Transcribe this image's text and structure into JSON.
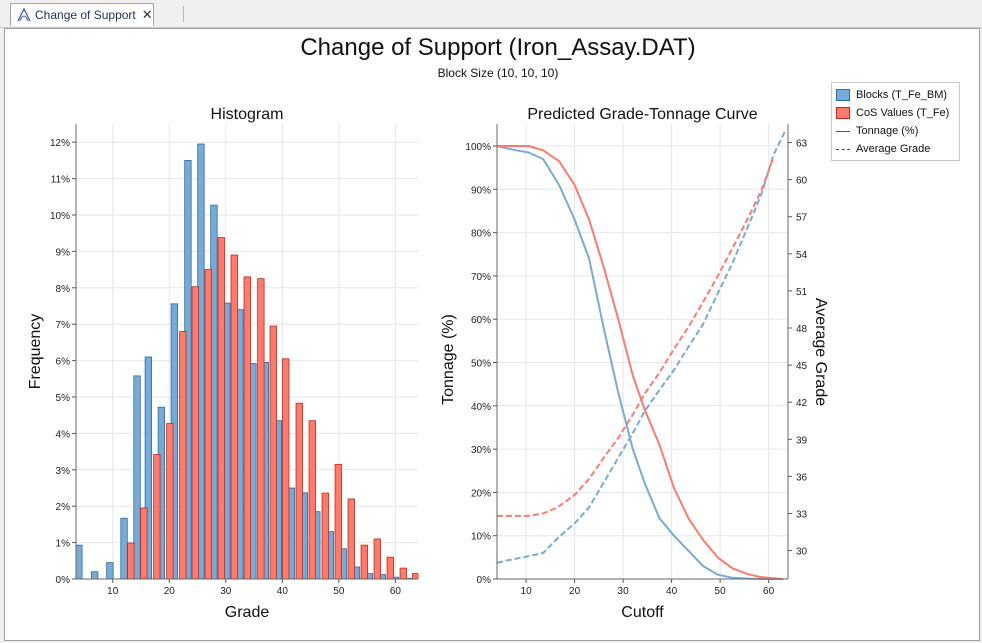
{
  "tab": {
    "label": "Change of Support",
    "close": "✕",
    "icon": "chart-icon"
  },
  "title": "Change of Support (Iron_Assay.DAT)",
  "subtitle": "Block Size (10, 10, 10)",
  "colors": {
    "blocks": "#78aad3",
    "blocks_edge": "#2b6ba3",
    "cos": "#f97c6f",
    "cos_edge": "#c8261a",
    "grid": "#e6e6e6"
  },
  "legend": {
    "blocks": "Blocks (T_Fe_BM)",
    "cos": "CoS Values (T_Fe)",
    "tonnage": "Tonnage (%)",
    "avg": "Average Grade"
  },
  "chart_data": [
    {
      "type": "bar",
      "title": "Histogram",
      "xlabel": "Grade",
      "ylabel": "Frequency",
      "xlim": [
        3.5,
        64
      ],
      "ylim": [
        0,
        12.5
      ],
      "xticks": [
        "10",
        "20",
        "30",
        "40",
        "50",
        "60"
      ],
      "yticks": [
        "0%",
        "1%",
        "2%",
        "3%",
        "4%",
        "5%",
        "6%",
        "7%",
        "8%",
        "9%",
        "10%",
        "11%",
        "12%"
      ],
      "series": [
        {
          "name": "Blocks (T_Fe_BM)",
          "x": [
            4,
            6.8,
            9.5,
            12,
            14.3,
            16.3,
            18.6,
            20.9,
            23.3,
            25.6,
            27.9,
            30.2,
            32.5,
            34.8,
            37,
            39.3,
            41.6,
            43.9,
            46.1,
            48.5,
            50.8,
            53.1,
            55.4,
            57.7,
            60,
            62.4
          ],
          "values": [
            0.93,
            0.2,
            0.45,
            1.67,
            5.58,
            6.1,
            4.72,
            7.56,
            11.5,
            11.95,
            10.27,
            7.58,
            7.4,
            5.92,
            5.95,
            4.35,
            2.5,
            2.37,
            1.85,
            1.3,
            0.83,
            0.33,
            0.15,
            0.12,
            0.05,
            0.02
          ]
        },
        {
          "name": "CoS Values (T_Fe)",
          "x": [
            13.2,
            15.5,
            17.8,
            20.1,
            22.4,
            24.6,
            26.9,
            29.2,
            31.5,
            33.8,
            36.2,
            38.4,
            40.6,
            43,
            45.3,
            47.6,
            49.9,
            52.2,
            54.5,
            56.8,
            59.1,
            61.4,
            63.6
          ],
          "values": [
            0.99,
            1.95,
            3.42,
            4.27,
            6.8,
            8.03,
            8.5,
            9.38,
            8.9,
            8.3,
            8.25,
            6.95,
            6.05,
            4.83,
            4.35,
            2.36,
            3.15,
            2.2,
            0.93,
            1.1,
            0.6,
            0.3,
            0.15
          ]
        }
      ]
    },
    {
      "type": "line",
      "title": "Predicted Grade-Tonnage Curve",
      "xlabel": "Cutoff",
      "ylabel": "Tonnage (%)",
      "y2label": "Average Grade",
      "xlim": [
        4,
        64
      ],
      "ylim": [
        0,
        100
      ],
      "y2lim": [
        27.7,
        64.5
      ],
      "xticks": [
        "10",
        "20",
        "30",
        "40",
        "50",
        "60"
      ],
      "yticks": [
        "0%",
        "10%",
        "20%",
        "30%",
        "40%",
        "50%",
        "60%",
        "70%",
        "80%",
        "90%",
        "100%"
      ],
      "y2ticks": [
        "30",
        "33",
        "36",
        "39",
        "42",
        "45",
        "48",
        "51",
        "54",
        "57",
        "60",
        "63"
      ],
      "series": [
        {
          "name": "Blocks tonnage",
          "axis": "left",
          "color": "blocks",
          "dash": false,
          "x": [
            4,
            6,
            8,
            10.5,
            13.5,
            16.8,
            20,
            23,
            26,
            29,
            32,
            34.5,
            37.5,
            40.5,
            43.5,
            46.5,
            49.5,
            52.5,
            56,
            59,
            61,
            63
          ],
          "values": [
            100,
            99.5,
            99,
            98.5,
            97,
            91,
            83,
            74,
            58,
            43,
            30,
            22,
            14,
            10,
            6.5,
            3,
            1,
            0.3,
            0.1,
            0,
            0,
            0
          ]
        },
        {
          "name": "CoS tonnage",
          "axis": "left",
          "color": "cos",
          "dash": false,
          "x": [
            4,
            7,
            10.5,
            13.5,
            16.8,
            20,
            23,
            26,
            29,
            32,
            34.5,
            37.5,
            40.5,
            43.5,
            46.5,
            49.5,
            52.5,
            55.5,
            58,
            60.5,
            63
          ],
          "values": [
            100,
            100,
            100,
            99,
            96.5,
            91,
            83,
            72,
            60,
            47,
            39,
            31,
            21,
            14,
            9,
            5,
            2.5,
            1.2,
            0.5,
            0.2,
            0
          ]
        },
        {
          "name": "Blocks average grade",
          "axis": "right",
          "color": "blocks",
          "dash": true,
          "x": [
            4,
            6,
            10,
            13.5,
            16.5,
            20,
            23,
            26,
            29,
            32,
            34.5,
            37.5,
            40.5,
            43.5,
            46.5,
            49.5,
            52.5,
            55.5,
            58.5,
            61,
            63.5
          ],
          "values": [
            29,
            29.2,
            29.5,
            29.8,
            31,
            32.2,
            33.5,
            35.5,
            37.5,
            39.5,
            41.3,
            43,
            44.6,
            46.5,
            48.3,
            50.8,
            53.2,
            56,
            58.8,
            62,
            64
          ]
        },
        {
          "name": "CoS average grade",
          "axis": "right",
          "color": "cos",
          "dash": true,
          "x": [
            4,
            7,
            10.5,
            13.5,
            16.5,
            20,
            23,
            26,
            29,
            32,
            34.5,
            37.5,
            40.5,
            43.5,
            46.5,
            49.5,
            52.5,
            55.5,
            58.5,
            61
          ],
          "values": [
            32.8,
            32.8,
            32.8,
            33,
            33.5,
            34.5,
            35.8,
            37.5,
            39.1,
            41,
            42.7,
            44.4,
            46.3,
            48.1,
            50.1,
            52.2,
            54.4,
            56.7,
            59.1,
            61.8
          ]
        }
      ]
    }
  ]
}
